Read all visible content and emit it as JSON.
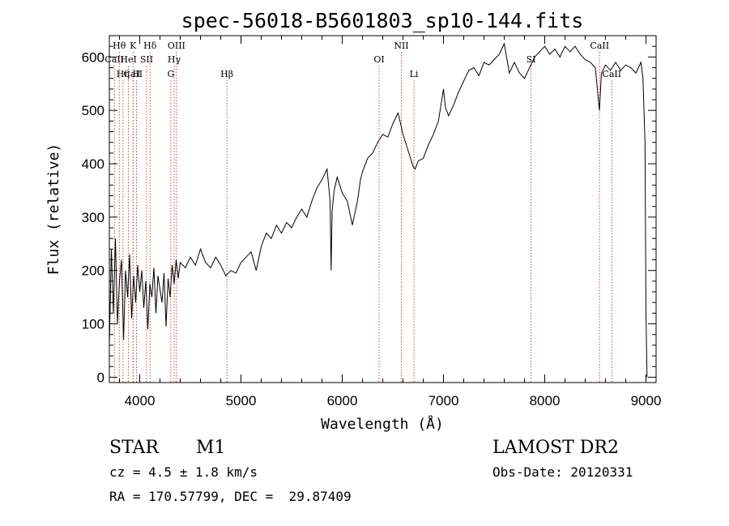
{
  "chart_data": {
    "type": "line",
    "title": "spec-56018-B5601803_sp10-144.fits",
    "xlabel": "Wavelength (Å)",
    "ylabel": "Flux (relative)",
    "xlim": [
      3700,
      9100
    ],
    "ylim": [
      -10,
      640
    ],
    "x_ticks": [
      4000,
      5000,
      6000,
      7000,
      8000,
      9000
    ],
    "y_ticks": [
      0,
      100,
      200,
      300,
      400,
      500,
      600
    ],
    "grid": false,
    "series": [
      {
        "x": [
          3700,
          3720,
          3740,
          3760,
          3780,
          3800,
          3820,
          3840,
          3860,
          3880,
          3900,
          3920,
          3940,
          3960,
          3980,
          4000,
          4020,
          4040,
          4060,
          4080,
          4100,
          4120,
          4140,
          4160,
          4180,
          4200,
          4220,
          4240,
          4260,
          4280,
          4300,
          4320,
          4340,
          4360,
          4380,
          4400,
          4450,
          4500,
          4550,
          4600,
          4650,
          4700,
          4750,
          4800,
          4850,
          4900,
          4950,
          5000,
          5050,
          5100,
          5150,
          5200,
          5250,
          5300,
          5350,
          5400,
          5450,
          5500,
          5550,
          5600,
          5650,
          5700,
          5750,
          5800,
          5850,
          5880,
          5890,
          5900,
          5920,
          5950,
          6000,
          6050,
          6100,
          6150,
          6180,
          6200,
          6250,
          6300,
          6350,
          6400,
          6450,
          6500,
          6550,
          6570,
          6600,
          6650,
          6700,
          6720,
          6750,
          6800,
          6850,
          6900,
          6950,
          7000,
          7020,
          7050,
          7100,
          7150,
          7200,
          7250,
          7300,
          7350,
          7400,
          7450,
          7500,
          7550,
          7600,
          7650,
          7700,
          7750,
          7800,
          7850,
          7900,
          7950,
          8000,
          8050,
          8100,
          8150,
          8200,
          8250,
          8300,
          8350,
          8400,
          8450,
          8500,
          8540,
          8560,
          8600,
          8650,
          8700,
          8750,
          8800,
          8850,
          8900,
          8950,
          8970,
          8990,
          9000,
          9010
        ],
        "y": [
          60,
          240,
          120,
          260,
          100,
          180,
          220,
          70,
          200,
          150,
          230,
          110,
          190,
          140,
          210,
          160,
          200,
          130,
          180,
          90,
          175,
          150,
          205,
          120,
          190,
          165,
          140,
          195,
          95,
          185,
          150,
          210,
          175,
          220,
          185,
          215,
          205,
          225,
          210,
          240,
          215,
          205,
          225,
          210,
          190,
          200,
          195,
          215,
          225,
          235,
          200,
          245,
          270,
          260,
          285,
          270,
          290,
          280,
          300,
          315,
          300,
          330,
          355,
          370,
          390,
          330,
          200,
          310,
          350,
          375,
          345,
          330,
          285,
          330,
          370,
          385,
          410,
          420,
          440,
          455,
          450,
          475,
          495,
          480,
          455,
          425,
          395,
          390,
          405,
          410,
          435,
          455,
          480,
          540,
          505,
          490,
          510,
          535,
          555,
          575,
          580,
          565,
          590,
          585,
          595,
          605,
          625,
          570,
          590,
          570,
          560,
          580,
          600,
          610,
          620,
          605,
          615,
          600,
          620,
          610,
          620,
          605,
          595,
          590,
          580,
          500,
          570,
          585,
          575,
          590,
          575,
          585,
          580,
          570,
          590,
          560,
          440,
          120,
          0
        ]
      }
    ],
    "line_markers": [
      {
        "label": "CaII",
        "x": 3934,
        "row": 2
      },
      {
        "label": "Hθ",
        "x": 3798,
        "row": 0
      },
      {
        "label": "CaII",
        "x": 3750,
        "row": 1
      },
      {
        "label": "HeI",
        "x": 3889,
        "row": 1
      },
      {
        "label": "Hη",
        "x": 3835,
        "row": 2
      },
      {
        "label": "K",
        "x": 3934,
        "row": 0
      },
      {
        "label": "SII",
        "x": 4068,
        "row": 1
      },
      {
        "label": "H",
        "x": 3968,
        "row": 2
      },
      {
        "label": "Hδ",
        "x": 4102,
        "row": 0
      },
      {
        "label": "OIII",
        "x": 4363,
        "row": 0
      },
      {
        "label": "Hγ",
        "x": 4340,
        "row": 1
      },
      {
        "label": "G",
        "x": 4307,
        "row": 2
      },
      {
        "label": "Hβ",
        "x": 4861,
        "row": 2
      },
      {
        "label": "OI",
        "x": 6364,
        "row": 1
      },
      {
        "label": "NII",
        "x": 6584,
        "row": 0
      },
      {
        "label": "Li",
        "x": 6708,
        "row": 2
      },
      {
        "label": "SI",
        "x": 7865,
        "row": 1
      },
      {
        "label": "CaII",
        "x": 8542,
        "row": 0
      },
      {
        "label": "CaII",
        "x": 8662,
        "row": 2
      }
    ]
  },
  "info": {
    "object_class": "STAR",
    "subclass": "M1",
    "survey": "LAMOST DR2",
    "redshift": "cz = 4.5 ± 1.8 km/s",
    "obs_date": "Obs-Date: 20120331",
    "coords": "RA = 170.57799, DEC =  29.87409"
  }
}
